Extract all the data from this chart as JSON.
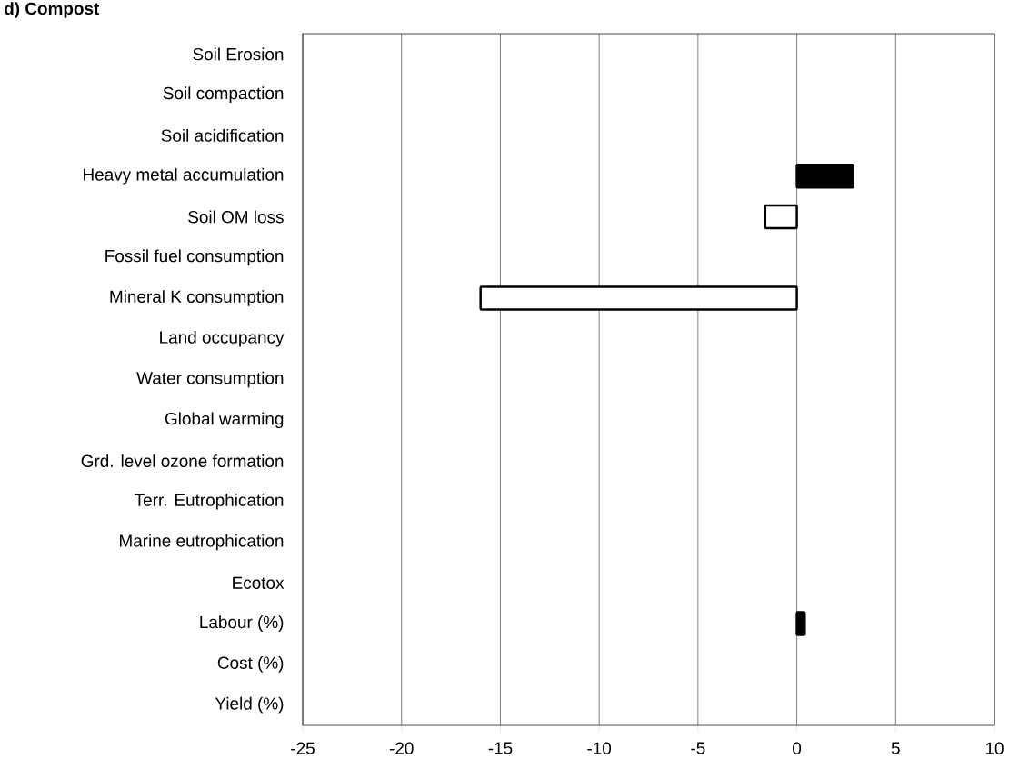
{
  "chart_data": {
    "type": "bar",
    "orientation": "horizontal",
    "title": "d) Compost",
    "categories": [
      "Soil Erosion",
      "Soil compaction",
      "Soil acidification",
      "Heavy metal accumulation",
      "Soil OM loss",
      "Fossil fuel consumption",
      "Mineral K consumption",
      "Land occupancy",
      "Water consumption",
      "Global warming",
      "Grd. level ozone formation",
      "Terr. Eutrophication",
      "Marine eutrophication",
      "Ecotox",
      "Labour (%)",
      "Cost (%)",
      "Yield (%)"
    ],
    "values": [
      null,
      null,
      null,
      2.85,
      -1.6,
      null,
      -16,
      null,
      null,
      null,
      null,
      null,
      null,
      null,
      0.4,
      null,
      null
    ],
    "colors": [
      "#000000",
      "#000000",
      "#000000",
      "#000000",
      "#ffffff",
      "#000000",
      "#ffffff",
      "#000000",
      "#000000",
      "#000000",
      "#000000",
      "#000000",
      "#000000",
      "#000000",
      "#000000",
      "#000000",
      "#000000"
    ],
    "xlim": [
      -25,
      10
    ],
    "xticks": [
      -25,
      -20,
      -15,
      -10,
      -5,
      0,
      5,
      10
    ],
    "grid": "x"
  }
}
